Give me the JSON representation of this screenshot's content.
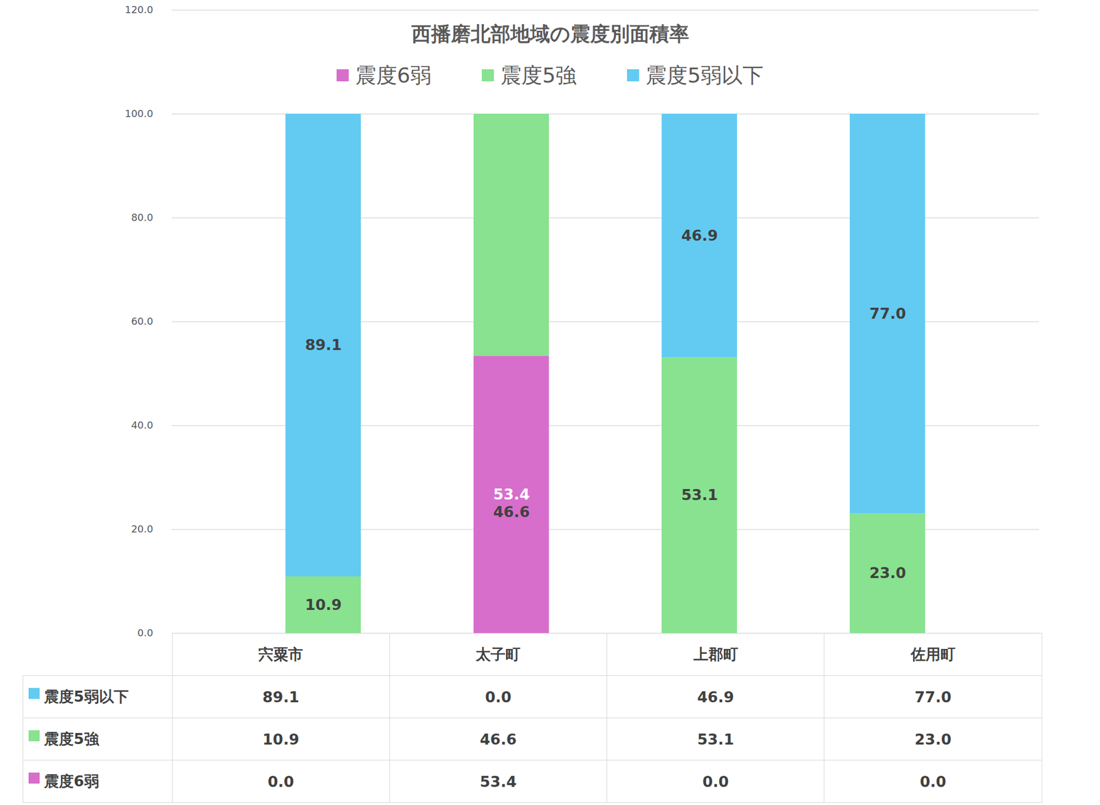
{
  "chart_data": {
    "type": "bar",
    "title": "西播磨北部地域の震度別面積率",
    "categories": [
      "宍粟市",
      "太子町",
      "上郡町",
      "佐用町"
    ],
    "series": [
      {
        "name": "震度6弱",
        "color": "#d76ecb",
        "values": [
          0,
          53.4,
          0,
          0
        ],
        "value_labels": [
          "0.0",
          "53.4",
          "0.0",
          "0.0"
        ]
      },
      {
        "name": "震度5強",
        "color": "#88e28f",
        "values": [
          10.9,
          46.6,
          53.1,
          23
        ],
        "value_labels": [
          "10.9",
          "46.6",
          "53.1",
          "23.0"
        ]
      },
      {
        "name": "震度5弱以下",
        "color": "#63cbf2",
        "values": [
          89.1,
          0,
          46.9,
          77
        ],
        "value_labels": [
          "89.1",
          "0.0",
          "46.9",
          "77.0"
        ]
      }
    ],
    "ylim": [
      0,
      120
    ],
    "yticks": [
      {
        "value": 0,
        "label": "0.0"
      },
      {
        "value": 20,
        "label": "20.0"
      },
      {
        "value": 40,
        "label": "40.0"
      },
      {
        "value": 60,
        "label": "60.0"
      },
      {
        "value": 80,
        "label": "80.0"
      },
      {
        "value": 100,
        "label": "100.0"
      },
      {
        "value": 120,
        "label": "120.0"
      }
    ],
    "grid": true,
    "stacked": true,
    "data_labels": true,
    "legend": "top"
  }
}
